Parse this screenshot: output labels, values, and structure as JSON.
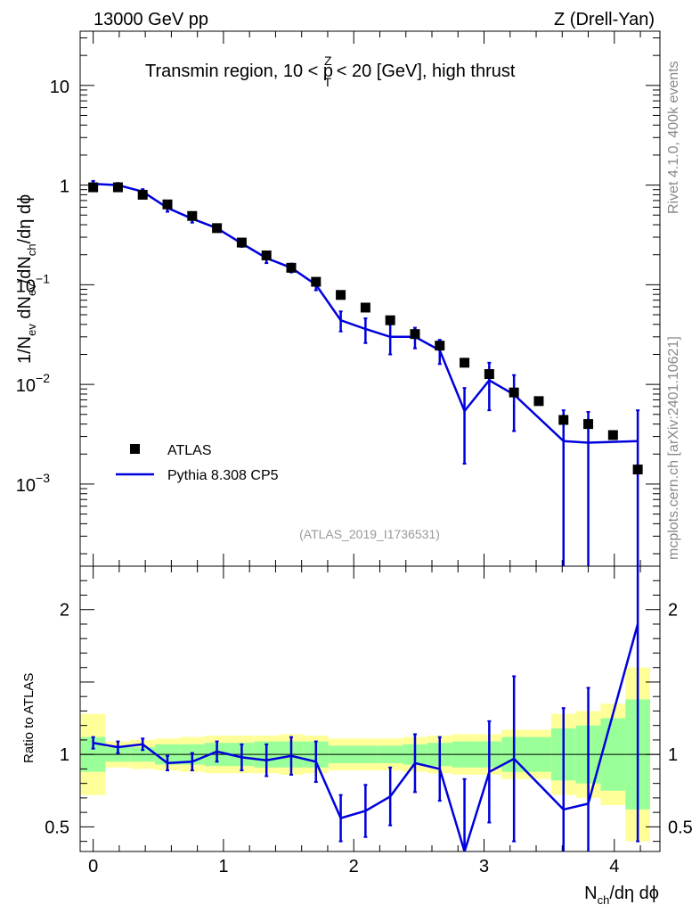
{
  "header": {
    "left": "13000 GeV pp",
    "right": "Z (Drell-Yan)",
    "region_pre": "Transmin region, 10 < p",
    "region_sup": "Z",
    "region_sub": "T",
    "region_post": " < 20 [GeV], high thrust"
  },
  "side": {
    "rivet": "Rivet 4.1.0,  400k events",
    "mcplots": "mcplots.cern.ch [arXiv:2401.10621]"
  },
  "reference": "(ATLAS_2019_I1736531)",
  "legend": {
    "data": "ATLAS",
    "mc": "Pythia 8.308 CP5"
  },
  "colors": {
    "mc": "#0000dd",
    "data": "#000000",
    "band_stat": "#99ff99",
    "band_total": "#ffff99"
  },
  "axes": {
    "ylabel_main": {
      "a": "1/N",
      "a_sub": "ev",
      "b": " dN",
      "b_sub": "ev",
      "c": "/dN",
      "c_sub": "ch",
      "d": "/dη dϕ"
    },
    "ylabel_ratio": "Ratio to ATLAS",
    "xlabel": {
      "a": "N",
      "a_sub": "ch",
      "b": "/dη dϕ"
    },
    "x_ticks": [
      "0",
      "1",
      "2",
      "3",
      "4"
    ],
    "main_y_ticks": [
      {
        "base": "10",
        "exp": "",
        "v": 10
      },
      {
        "base": "1",
        "exp": "",
        "v": 1
      },
      {
        "base": "10",
        "exp": "−1",
        "v": 0.1
      },
      {
        "base": "10",
        "exp": "−2",
        "v": 0.01
      },
      {
        "base": "10",
        "exp": "−3",
        "v": 0.001
      }
    ],
    "ratio_y_ticks": [
      "0.5",
      "1",
      "2"
    ]
  },
  "chart_data": {
    "type": "scatter",
    "title": "Transmin region, 10 < pT(Z) < 20 [GeV], high thrust",
    "xlim": [
      -0.1,
      4.35
    ],
    "main_ylim": [
      0.00015,
      35
    ],
    "main_yscale": "log",
    "ratio_ylim": [
      0.33,
      2.3
    ],
    "x": [
      0.0,
      0.19,
      0.38,
      0.57,
      0.76,
      0.95,
      1.14,
      1.33,
      1.52,
      1.71,
      1.9,
      2.09,
      2.28,
      2.47,
      2.66,
      2.85,
      3.04,
      3.23,
      3.42,
      3.61,
      3.8,
      3.99,
      4.18
    ],
    "series": [
      {
        "name": "ATLAS",
        "values": [
          0.95,
          0.95,
          0.8,
          0.64,
          0.49,
          0.37,
          0.265,
          0.197,
          0.148,
          0.107,
          0.079,
          0.059,
          0.044,
          0.032,
          0.0245,
          0.0165,
          0.0127,
          0.0083,
          0.0068,
          0.0044,
          0.004,
          0.0031,
          0.0014
        ]
      },
      {
        "name": "Pythia 8.308 CP5",
        "values": [
          1.03,
          1.0,
          0.86,
          0.59,
          0.46,
          0.37,
          0.26,
          0.185,
          0.148,
          0.1,
          0.044,
          0.036,
          0.03,
          0.03,
          0.022,
          0.0054,
          0.011,
          0.0079,
          null,
          0.0027,
          0.0026,
          null,
          0.0027
        ],
        "err_lo": [
          0.07,
          0.05,
          0.05,
          0.05,
          0.04,
          0.03,
          0.02,
          0.02,
          0.015,
          0.012,
          0.01,
          0.01,
          0.01,
          0.007,
          0.006,
          0.0038,
          0.0055,
          0.0045,
          null,
          0.00265,
          0.00255,
          null,
          0.00265
        ],
        "err_hi": [
          0.07,
          0.05,
          0.05,
          0.05,
          0.04,
          0.03,
          0.02,
          0.02,
          0.015,
          0.012,
          0.01,
          0.01,
          0.01,
          0.007,
          0.006,
          0.0038,
          0.0055,
          0.0045,
          null,
          0.0028,
          0.0027,
          null,
          0.0028
        ]
      }
    ],
    "ratio": {
      "values": [
        1.08,
        1.05,
        1.07,
        0.94,
        0.95,
        1.02,
        0.98,
        0.96,
        0.99,
        0.95,
        0.56,
        0.61,
        0.71,
        0.94,
        0.9,
        0.33,
        0.88,
        0.97,
        null,
        0.62,
        0.66,
        null,
        1.9
      ],
      "err": [
        0.04,
        0.04,
        0.04,
        0.05,
        0.06,
        0.07,
        0.09,
        0.11,
        0.13,
        0.14,
        0.16,
        0.18,
        0.2,
        0.2,
        0.22,
        0.5,
        0.35,
        0.57,
        null,
        0.7,
        0.8,
        null,
        1.5
      ],
      "band_stat": [
        0.12,
        0.05,
        0.05,
        0.07,
        0.07,
        0.08,
        0.08,
        0.09,
        0.09,
        0.09,
        0.06,
        0.06,
        0.06,
        0.07,
        0.08,
        0.09,
        0.09,
        0.12,
        0.12,
        0.18,
        0.2,
        0.25,
        0.38
      ],
      "band_total": [
        0.28,
        0.09,
        0.1,
        0.11,
        0.12,
        0.13,
        0.13,
        0.13,
        0.14,
        0.13,
        0.11,
        0.11,
        0.11,
        0.12,
        0.13,
        0.14,
        0.14,
        0.17,
        0.17,
        0.28,
        0.3,
        0.35,
        0.6
      ]
    }
  }
}
